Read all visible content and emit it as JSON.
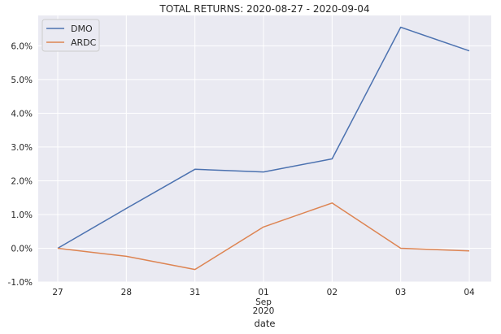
{
  "chart_data": {
    "type": "line",
    "title": "TOTAL RETURNS: 2020-08-27 - 2020-09-04",
    "xlabel": "date",
    "ylabel": "",
    "x": [
      "2020-08-27",
      "2020-08-28",
      "2020-08-31",
      "2020-09-01",
      "2020-09-02",
      "2020-09-03",
      "2020-09-04"
    ],
    "x_tick_labels": [
      "27",
      "28",
      "31",
      "01",
      "02",
      "03",
      "04"
    ],
    "x_tick_sublabel": {
      "index": 3,
      "lines": [
        "Sep",
        "2020"
      ]
    },
    "ylim": [
      -1.0,
      6.9
    ],
    "y_ticks": [
      -1.0,
      0.0,
      1.0,
      2.0,
      3.0,
      4.0,
      5.0,
      6.0
    ],
    "y_tick_labels": [
      "-1.0%",
      "0.0%",
      "1.0%",
      "2.0%",
      "3.0%",
      "4.0%",
      "5.0%",
      "6.0%"
    ],
    "series": [
      {
        "name": "DMO",
        "color": "#4c72b0",
        "values": [
          0.0,
          1.18,
          2.34,
          2.26,
          2.65,
          6.55,
          5.85
        ]
      },
      {
        "name": "ARDC",
        "color": "#dd8452",
        "values": [
          0.0,
          -0.24,
          -0.63,
          0.63,
          1.34,
          0.0,
          -0.08
        ]
      }
    ],
    "grid": true,
    "legend_position": "top-left",
    "background_color": "#eaeaf2",
    "grid_color": "#ffffff"
  }
}
